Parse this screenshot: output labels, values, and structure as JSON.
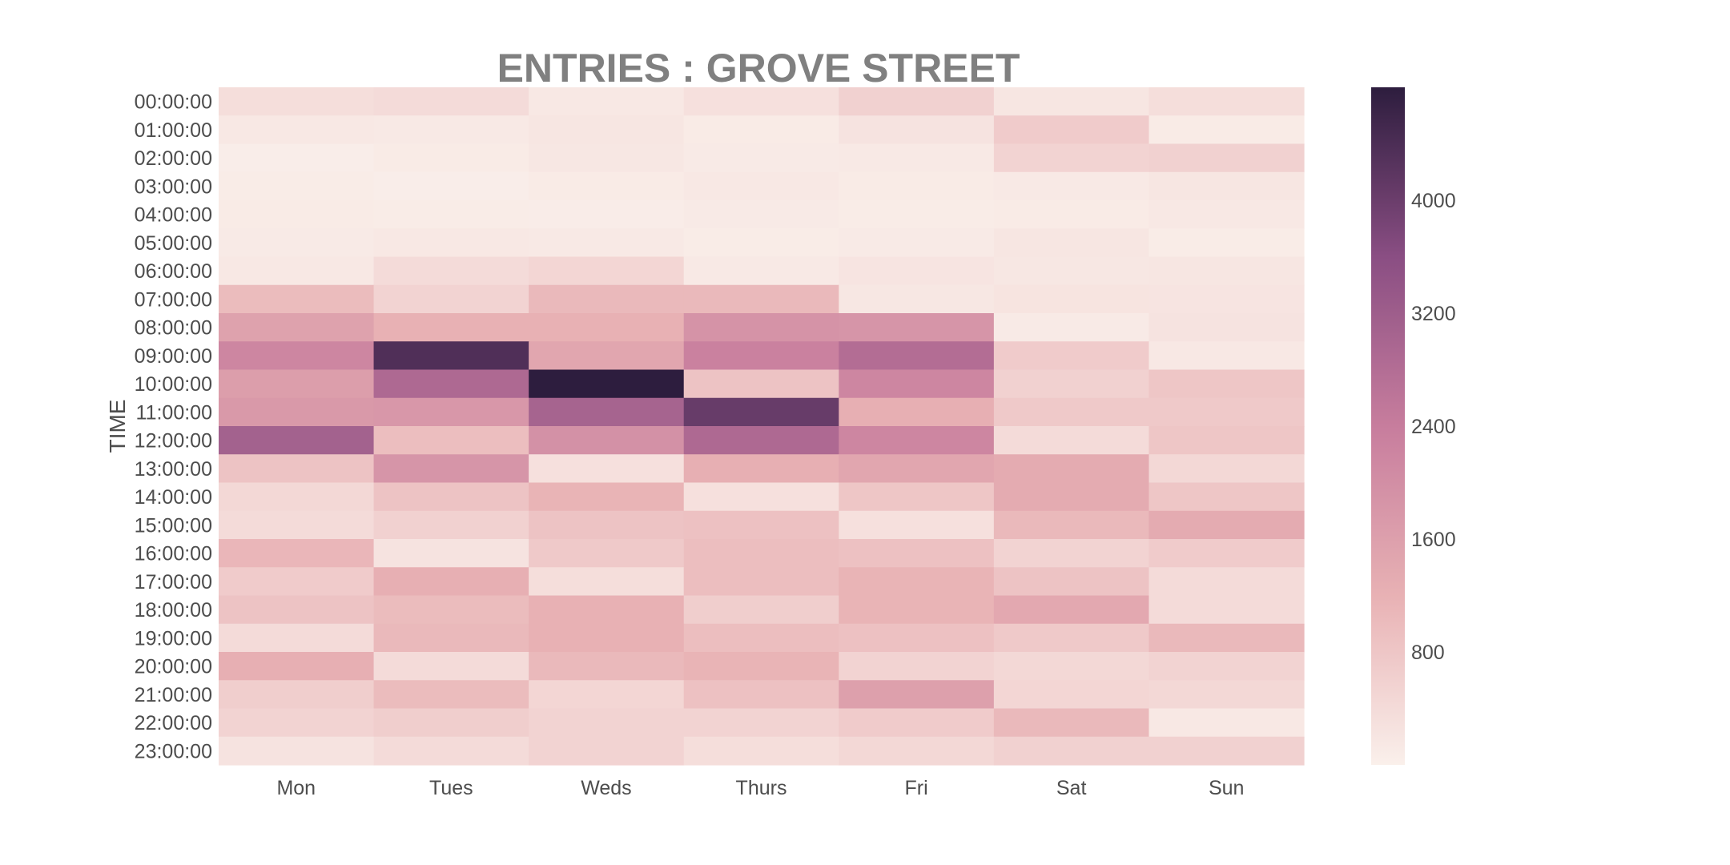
{
  "chart_data": {
    "type": "heatmap",
    "title": "ENTRIES : GROVE STREET",
    "xlabel": "",
    "ylabel": "TIME",
    "x_categories": [
      "Mon",
      "Tues",
      "Weds",
      "Thurs",
      "Fri",
      "Sat",
      "Sun"
    ],
    "y_categories": [
      "00:00:00",
      "01:00:00",
      "02:00:00",
      "03:00:00",
      "04:00:00",
      "05:00:00",
      "06:00:00",
      "07:00:00",
      "08:00:00",
      "09:00:00",
      "10:00:00",
      "11:00:00",
      "12:00:00",
      "13:00:00",
      "14:00:00",
      "15:00:00",
      "16:00:00",
      "17:00:00",
      "18:00:00",
      "19:00:00",
      "20:00:00",
      "21:00:00",
      "22:00:00",
      "23:00:00"
    ],
    "values": [
      [
        350,
        400,
        150,
        300,
        600,
        200,
        350
      ],
      [
        150,
        130,
        200,
        100,
        250,
        700,
        100
      ],
      [
        50,
        100,
        180,
        120,
        130,
        550,
        600
      ],
      [
        80,
        50,
        100,
        150,
        100,
        130,
        200
      ],
      [
        100,
        80,
        70,
        120,
        80,
        100,
        150
      ],
      [
        120,
        150,
        130,
        80,
        120,
        200,
        80
      ],
      [
        150,
        400,
        500,
        130,
        220,
        180,
        200
      ],
      [
        1000,
        550,
        1050,
        1050,
        180,
        230,
        220
      ],
      [
        1550,
        1200,
        1200,
        1900,
        1850,
        120,
        250
      ],
      [
        2200,
        4350,
        1450,
        2300,
        2800,
        700,
        150
      ],
      [
        1650,
        2900,
        4800,
        850,
        2200,
        600,
        800
      ],
      [
        1750,
        1800,
        3050,
        4050,
        1250,
        750,
        750
      ],
      [
        3100,
        950,
        1950,
        2900,
        2200,
        400,
        800
      ],
      [
        850,
        1850,
        300,
        1250,
        1450,
        1350,
        450
      ],
      [
        450,
        850,
        1150,
        300,
        800,
        1350,
        800
      ],
      [
        400,
        600,
        850,
        900,
        300,
        1050,
        1350
      ],
      [
        1100,
        250,
        750,
        950,
        900,
        550,
        700
      ],
      [
        700,
        1250,
        350,
        950,
        1150,
        850,
        400
      ],
      [
        850,
        1000,
        1200,
        650,
        1150,
        1400,
        400
      ],
      [
        400,
        1050,
        1200,
        950,
        900,
        750,
        1050
      ],
      [
        1250,
        400,
        1050,
        1150,
        550,
        450,
        550
      ],
      [
        650,
        1000,
        500,
        900,
        1600,
        500,
        450
      ],
      [
        550,
        650,
        550,
        550,
        700,
        1050,
        150
      ],
      [
        250,
        400,
        550,
        350,
        450,
        600,
        600
      ]
    ],
    "colorbar": {
      "min": 0,
      "max": 4800,
      "ticks": [
        800,
        1600,
        2400,
        3200,
        4000
      ],
      "tick_labels": [
        "800",
        "1600",
        "2400",
        "3200",
        "4000"
      ]
    },
    "colors": {
      "low": "#faf0eb",
      "mid_low": "#e8b1b4",
      "mid": "#c77d9d",
      "mid_high": "#8a4e83",
      "high": "#2d1d3e"
    },
    "grid": false,
    "legend": "colorbar-right"
  }
}
